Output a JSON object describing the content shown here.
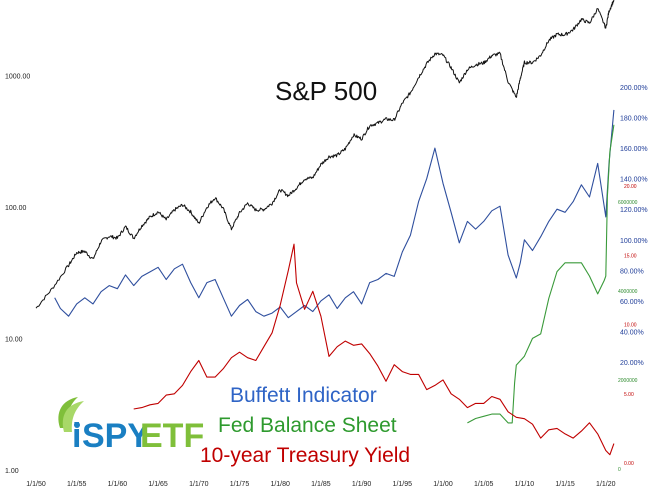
{
  "chart_data": {
    "type": "line",
    "title": "S&P 500",
    "x_ticks": [
      "1/1/50",
      "1/1/55",
      "1/1/60",
      "1/1/65",
      "1/1/70",
      "1/1/75",
      "1/1/80",
      "1/1/85",
      "1/1/90",
      "1/1/95",
      "1/1/00",
      "1/1/05",
      "1/1/10",
      "1/1/15",
      "1/1/20"
    ],
    "left_axis": {
      "scale": "log",
      "ticks": [
        "1.00",
        "10.00",
        "100.00",
        "1000.00"
      ],
      "values": [
        1,
        10,
        100,
        1000
      ],
      "range": [
        1,
        3500
      ]
    },
    "pct_axis": {
      "ticks": [
        "20.00%",
        "40.00%",
        "60.00%",
        "80.00%",
        "100.00%",
        "120.00%",
        "140.00%",
        "160.00%",
        "180.00%",
        "200.00%"
      ],
      "values": [
        20,
        40,
        60,
        80,
        100,
        120,
        140,
        160,
        180,
        200
      ]
    },
    "red_axis": {
      "ticks": [
        "0.00",
        "5.00",
        "10.00",
        "15.00",
        "20.00"
      ],
      "values": [
        0,
        5,
        10,
        15,
        20
      ]
    },
    "green_axis": {
      "ticks": [
        "0",
        "2000000",
        "4000000",
        "6000000"
      ],
      "values": [
        0,
        2000000,
        4000000,
        6000000
      ]
    },
    "x_range": [
      1950,
      2021.5
    ],
    "series": [
      {
        "name": "S&P 500",
        "color": "#111111",
        "axis": "left",
        "points": [
          [
            1950,
            17
          ],
          [
            1952,
            24
          ],
          [
            1954,
            36
          ],
          [
            1955,
            45
          ],
          [
            1956,
            46
          ],
          [
            1957,
            40
          ],
          [
            1958,
            55
          ],
          [
            1959,
            60
          ],
          [
            1960,
            58
          ],
          [
            1961,
            71
          ],
          [
            1962,
            58
          ],
          [
            1963,
            72
          ],
          [
            1964,
            84
          ],
          [
            1965,
            92
          ],
          [
            1966,
            80
          ],
          [
            1967,
            95
          ],
          [
            1968,
            104
          ],
          [
            1969,
            92
          ],
          [
            1970,
            75
          ],
          [
            1971,
            100
          ],
          [
            1972,
            118
          ],
          [
            1973,
            97
          ],
          [
            1974,
            68
          ],
          [
            1975,
            90
          ],
          [
            1976,
            107
          ],
          [
            1977,
            95
          ],
          [
            1978,
            96
          ],
          [
            1979,
            107
          ],
          [
            1980,
            135
          ],
          [
            1981,
            122
          ],
          [
            1982,
            140
          ],
          [
            1983,
            164
          ],
          [
            1984,
            167
          ],
          [
            1985,
            211
          ],
          [
            1986,
            242
          ],
          [
            1987,
            247
          ],
          [
            1988,
            277
          ],
          [
            1989,
            353
          ],
          [
            1990,
            330
          ],
          [
            1991,
            417
          ],
          [
            1992,
            435
          ],
          [
            1993,
            466
          ],
          [
            1994,
            459
          ],
          [
            1995,
            615
          ],
          [
            1996,
            740
          ],
          [
            1997,
            970
          ],
          [
            1998,
            1229
          ],
          [
            1999,
            1469
          ],
          [
            2000,
            1430
          ],
          [
            2001,
            1148
          ],
          [
            2002,
            880
          ],
          [
            2003,
            1112
          ],
          [
            2004,
            1211
          ],
          [
            2005,
            1248
          ],
          [
            2006,
            1418
          ],
          [
            2007,
            1468
          ],
          [
            2008,
            900
          ],
          [
            2009,
            680
          ],
          [
            2009.5,
            950
          ],
          [
            2010,
            1257
          ],
          [
            2011,
            1257
          ],
          [
            2012,
            1426
          ],
          [
            2013,
            1848
          ],
          [
            2014,
            2058
          ],
          [
            2015,
            2043
          ],
          [
            2016,
            2238
          ],
          [
            2017,
            2673
          ],
          [
            2018,
            2506
          ],
          [
            2019,
            3230
          ],
          [
            2020,
            2300
          ],
          [
            2020.4,
            3100
          ],
          [
            2021,
            3756
          ]
        ]
      },
      {
        "name": "Buffett Indicator",
        "color": "#2f4f9e",
        "axis": "pct",
        "points": [
          [
            1952.3,
            62
          ],
          [
            1953,
            55
          ],
          [
            1954,
            50
          ],
          [
            1955,
            58
          ],
          [
            1956,
            62
          ],
          [
            1957,
            58
          ],
          [
            1958,
            66
          ],
          [
            1959,
            70
          ],
          [
            1960,
            68
          ],
          [
            1961,
            77
          ],
          [
            1962,
            70
          ],
          [
            1963,
            76
          ],
          [
            1964,
            79
          ],
          [
            1965,
            82
          ],
          [
            1966,
            74
          ],
          [
            1967,
            81
          ],
          [
            1968,
            84
          ],
          [
            1969,
            72
          ],
          [
            1970,
            62
          ],
          [
            1971,
            72
          ],
          [
            1972,
            74
          ],
          [
            1973,
            62
          ],
          [
            1974,
            50
          ],
          [
            1975,
            57
          ],
          [
            1976,
            61
          ],
          [
            1977,
            53
          ],
          [
            1978,
            50
          ],
          [
            1979,
            52
          ],
          [
            1980,
            56
          ],
          [
            1981,
            49
          ],
          [
            1982,
            53
          ],
          [
            1983,
            57
          ],
          [
            1984,
            53
          ],
          [
            1985,
            60
          ],
          [
            1986,
            64
          ],
          [
            1987,
            55
          ],
          [
            1988,
            62
          ],
          [
            1989,
            66
          ],
          [
            1990,
            58
          ],
          [
            1991,
            72
          ],
          [
            1992,
            74
          ],
          [
            1993,
            78
          ],
          [
            1994,
            76
          ],
          [
            1995,
            92
          ],
          [
            1996,
            103
          ],
          [
            1997,
            125
          ],
          [
            1998,
            140
          ],
          [
            1999,
            160
          ],
          [
            2000,
            137
          ],
          [
            2001,
            118
          ],
          [
            2002,
            98
          ],
          [
            2003,
            112
          ],
          [
            2004,
            107
          ],
          [
            2005,
            112
          ],
          [
            2006,
            119
          ],
          [
            2007,
            122
          ],
          [
            2008,
            90
          ],
          [
            2009,
            75
          ],
          [
            2009.5,
            85
          ],
          [
            2010,
            100
          ],
          [
            2011,
            93
          ],
          [
            2012,
            102
          ],
          [
            2013,
            112
          ],
          [
            2014,
            120
          ],
          [
            2015,
            118
          ],
          [
            2016,
            125
          ],
          [
            2017,
            136
          ],
          [
            2018,
            128
          ],
          [
            2019,
            150
          ],
          [
            2020,
            115
          ],
          [
            2020.4,
            150
          ],
          [
            2021,
            185
          ]
        ]
      },
      {
        "name": "Fed Balance Sheet",
        "color": "#3a9a3a",
        "axis": "green",
        "points": [
          [
            2003,
            900000
          ],
          [
            2004,
            1000000
          ],
          [
            2005,
            1050000
          ],
          [
            2006,
            1100000
          ],
          [
            2007,
            1100000
          ],
          [
            2008,
            900000
          ],
          [
            2008.5,
            900000
          ],
          [
            2008.8,
            1800000
          ],
          [
            2009,
            2200000
          ],
          [
            2010,
            2400000
          ],
          [
            2011,
            2800000
          ],
          [
            2012,
            2900000
          ],
          [
            2013,
            3700000
          ],
          [
            2014,
            4300000
          ],
          [
            2015,
            4500000
          ],
          [
            2016,
            4500000
          ],
          [
            2017,
            4500000
          ],
          [
            2018,
            4200000
          ],
          [
            2019,
            3800000
          ],
          [
            2019.8,
            4100000
          ],
          [
            2020,
            4200000
          ],
          [
            2020.2,
            6000000
          ],
          [
            2020.5,
            7000000
          ],
          [
            2021,
            7600000
          ]
        ]
      },
      {
        "name": "10-year Treasury Yield",
        "color": "#c00000",
        "axis": "red",
        "points": [
          [
            1962,
            3.9
          ],
          [
            1963,
            4.0
          ],
          [
            1964,
            4.2
          ],
          [
            1965,
            4.3
          ],
          [
            1966,
            4.9
          ],
          [
            1967,
            5.0
          ],
          [
            1968,
            5.6
          ],
          [
            1969,
            6.6
          ],
          [
            1970,
            7.4
          ],
          [
            1971,
            6.2
          ],
          [
            1972,
            6.2
          ],
          [
            1973,
            6.8
          ],
          [
            1974,
            7.6
          ],
          [
            1975,
            8.0
          ],
          [
            1976,
            7.6
          ],
          [
            1977,
            7.4
          ],
          [
            1978,
            8.4
          ],
          [
            1979,
            9.4
          ],
          [
            1980,
            11.4
          ],
          [
            1981,
            13.9
          ],
          [
            1981.7,
            15.8
          ],
          [
            1982,
            13.0
          ],
          [
            1983,
            11.1
          ],
          [
            1984,
            12.4
          ],
          [
            1985,
            10.6
          ],
          [
            1986,
            7.7
          ],
          [
            1987,
            8.4
          ],
          [
            1988,
            8.8
          ],
          [
            1989,
            8.5
          ],
          [
            1990,
            8.6
          ],
          [
            1991,
            7.9
          ],
          [
            1992,
            7.0
          ],
          [
            1993,
            5.9
          ],
          [
            1994,
            7.1
          ],
          [
            1995,
            6.6
          ],
          [
            1996,
            6.4
          ],
          [
            1997,
            6.4
          ],
          [
            1998,
            5.3
          ],
          [
            1999,
            5.6
          ],
          [
            2000,
            6.0
          ],
          [
            2001,
            5.0
          ],
          [
            2002,
            4.6
          ],
          [
            2003,
            4.0
          ],
          [
            2004,
            4.3
          ],
          [
            2005,
            4.3
          ],
          [
            2006,
            4.8
          ],
          [
            2007,
            4.6
          ],
          [
            2008,
            3.7
          ],
          [
            2009,
            3.3
          ],
          [
            2010,
            3.2
          ],
          [
            2011,
            2.8
          ],
          [
            2012,
            1.8
          ],
          [
            2013,
            2.4
          ],
          [
            2014,
            2.5
          ],
          [
            2015,
            2.1
          ],
          [
            2016,
            1.8
          ],
          [
            2017,
            2.3
          ],
          [
            2018,
            2.9
          ],
          [
            2019,
            2.1
          ],
          [
            2020,
            0.9
          ],
          [
            2020.5,
            0.6
          ],
          [
            2021,
            1.4
          ]
        ]
      }
    ],
    "legend_labels": [
      "Buffett Indicator",
      "Fed Balance Sheet",
      "10-year Treasury Yield"
    ],
    "grid": false
  },
  "logo": {
    "prefix": "i",
    "brand1": "SPY",
    "brand2": "ETF"
  }
}
